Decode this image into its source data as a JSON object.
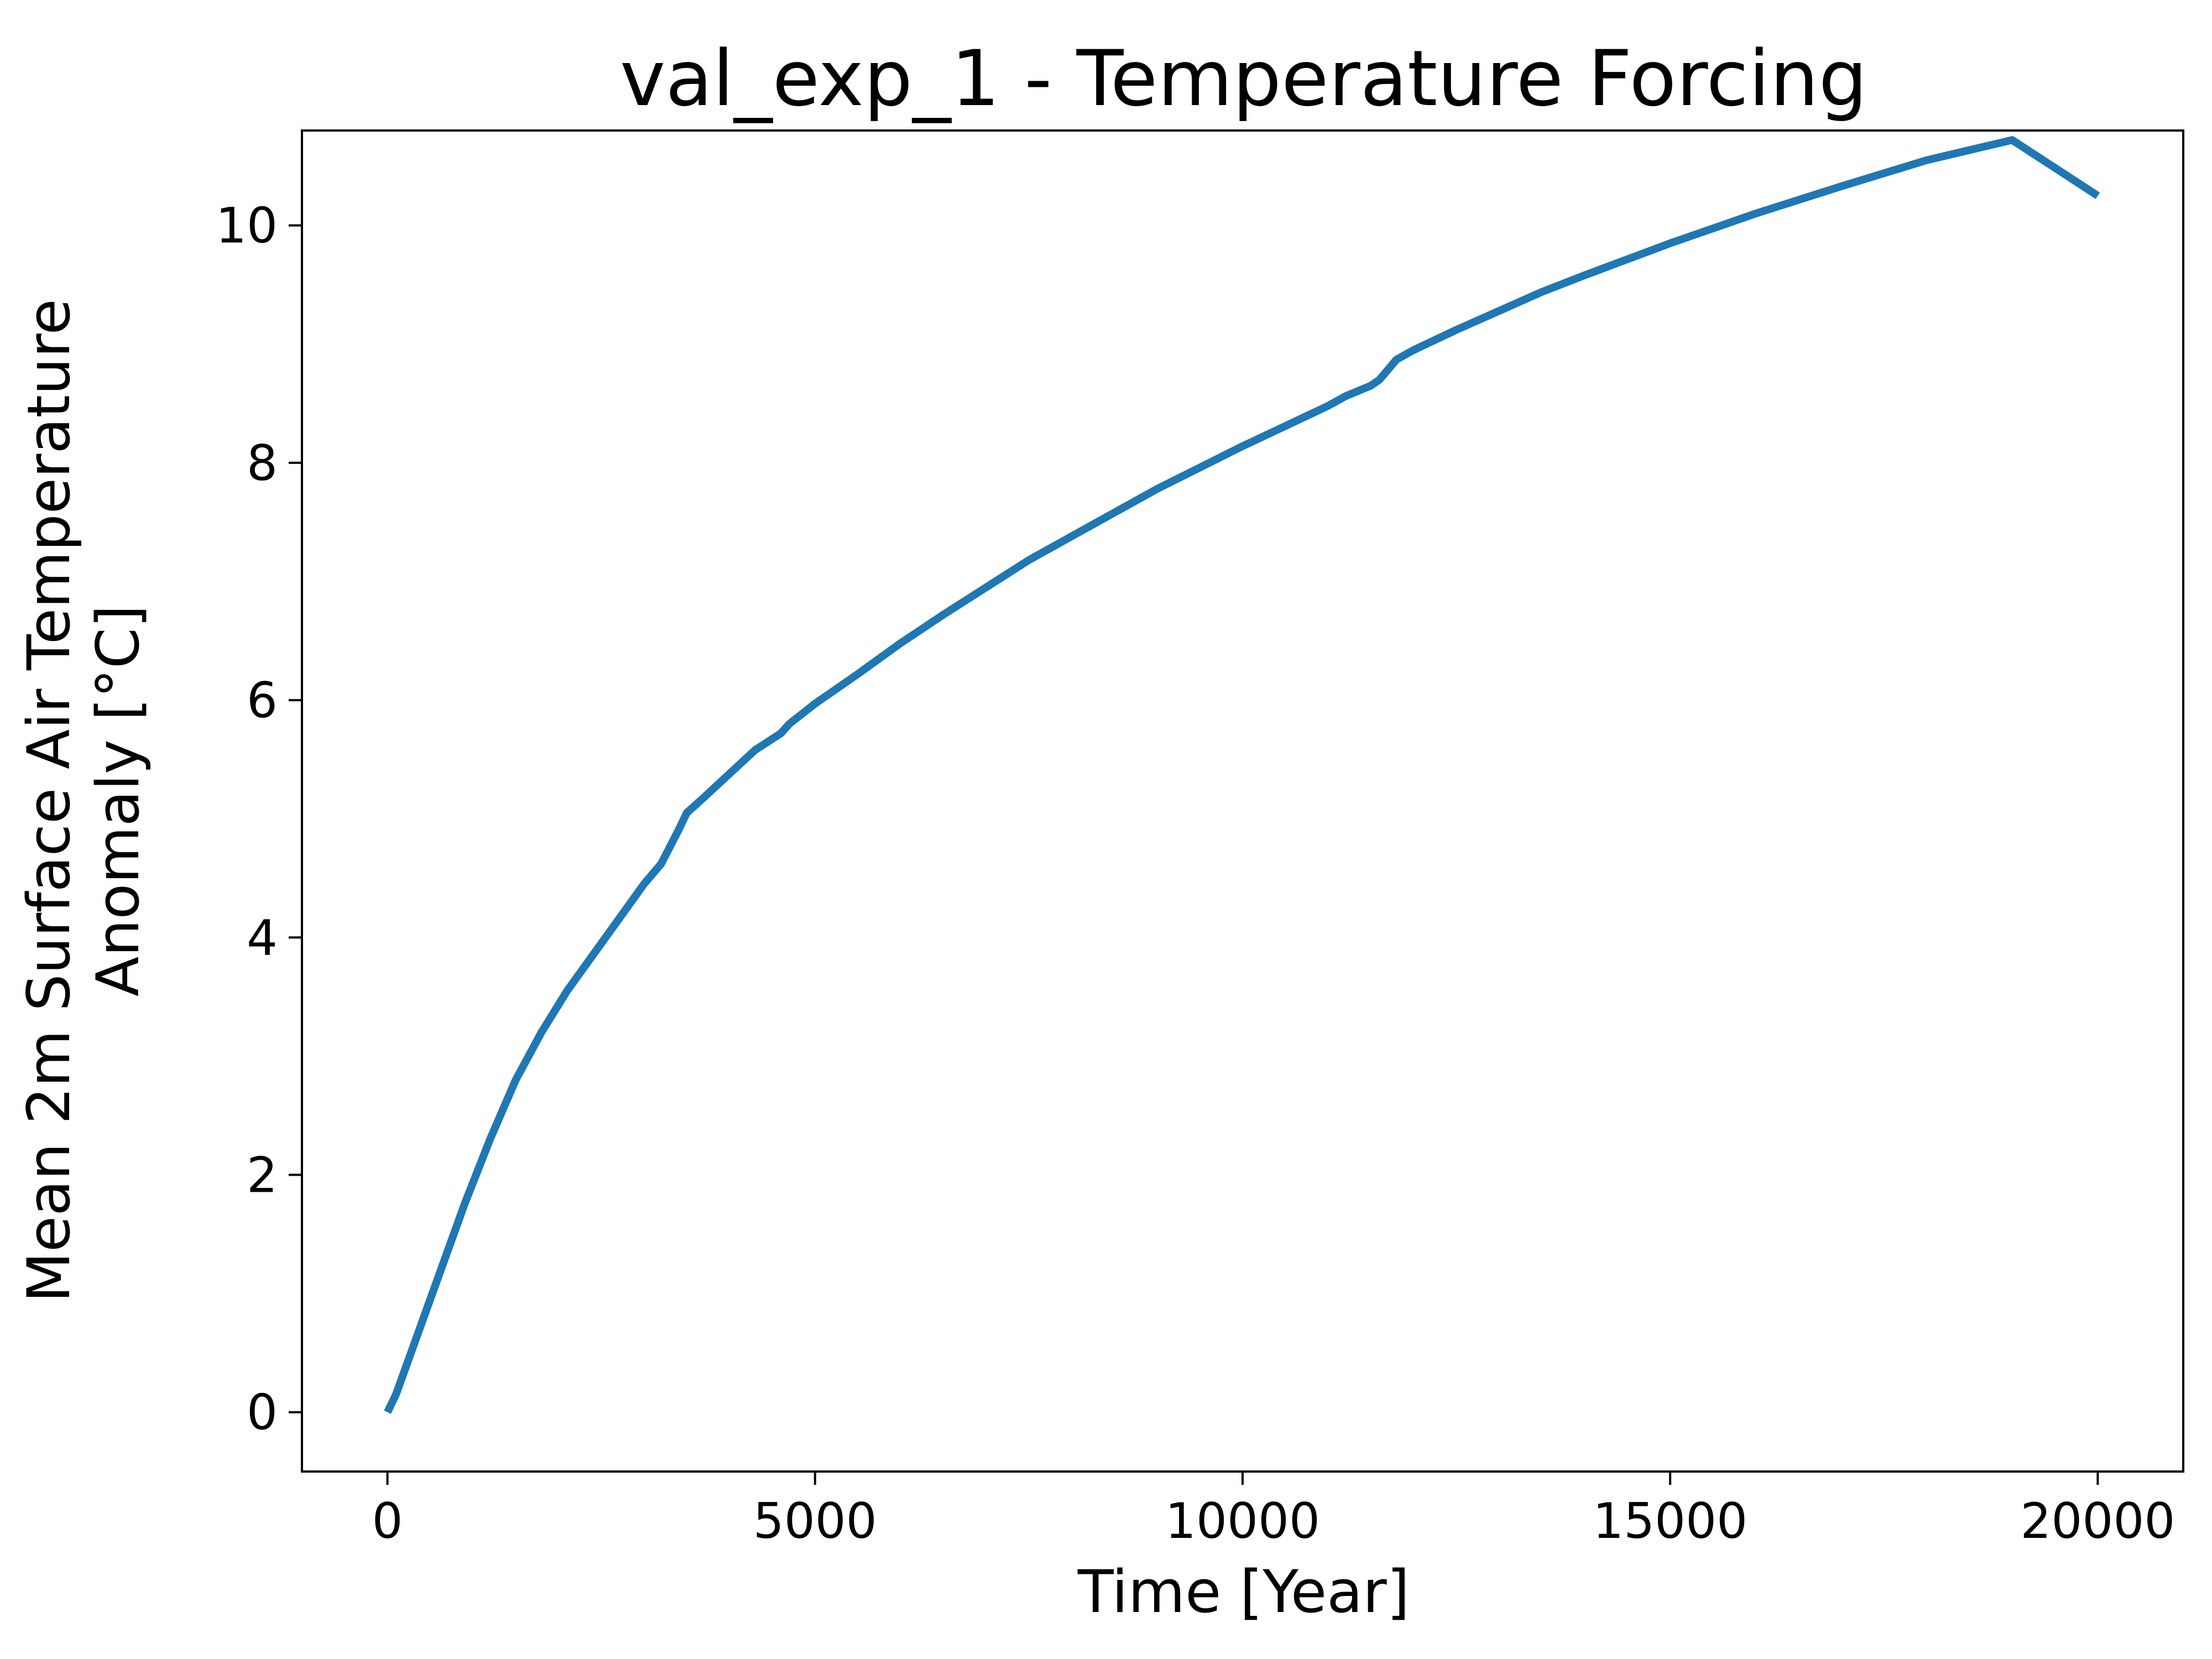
{
  "chart_data": {
    "type": "line",
    "title": "val_exp_1 - Temperature Forcing",
    "xlabel": "Time [Year]",
    "ylabel_lines": [
      "Mean 2m Surface Air Temperature",
      "Anomaly [°C]"
    ],
    "xlim": [
      -1000,
      21000
    ],
    "ylim": [
      -0.5,
      10.8
    ],
    "xticks": [
      0,
      5000,
      10000,
      15000,
      20000
    ],
    "xtick_labels": [
      "0",
      "5000",
      "10000",
      "15000",
      "20000"
    ],
    "yticks": [
      0,
      2,
      4,
      6,
      8,
      10
    ],
    "ytick_labels": [
      "0",
      "2",
      "4",
      "6",
      "8",
      "10"
    ],
    "grid": false,
    "legend": "none",
    "series": [
      {
        "color": "#1f77b4",
        "x": [
          0,
          100,
          300,
          600,
          900,
          1200,
          1500,
          1800,
          2100,
          2400,
          2700,
          3000,
          3200,
          3400,
          3500,
          3700,
          4000,
          4300,
          4600,
          4700,
          5000,
          5500,
          6000,
          6500,
          7000,
          7500,
          8000,
          8500,
          9000,
          9500,
          10000,
          10500,
          11000,
          11200,
          11500,
          11600,
          11800,
          12000,
          12500,
          13000,
          13500,
          14000,
          15000,
          16000,
          17000,
          18000,
          19000,
          20000
        ],
        "y": [
          0.0,
          0.15,
          0.55,
          1.15,
          1.75,
          2.3,
          2.8,
          3.2,
          3.55,
          3.85,
          4.15,
          4.45,
          4.62,
          4.9,
          5.05,
          5.18,
          5.38,
          5.58,
          5.72,
          5.8,
          5.97,
          6.22,
          6.48,
          6.72,
          6.95,
          7.18,
          7.38,
          7.58,
          7.78,
          7.96,
          8.14,
          8.31,
          8.48,
          8.56,
          8.65,
          8.7,
          8.87,
          8.95,
          9.12,
          9.28,
          9.44,
          9.58,
          9.85,
          10.1,
          10.33,
          10.55,
          10.72,
          10.25
        ]
      }
    ]
  }
}
